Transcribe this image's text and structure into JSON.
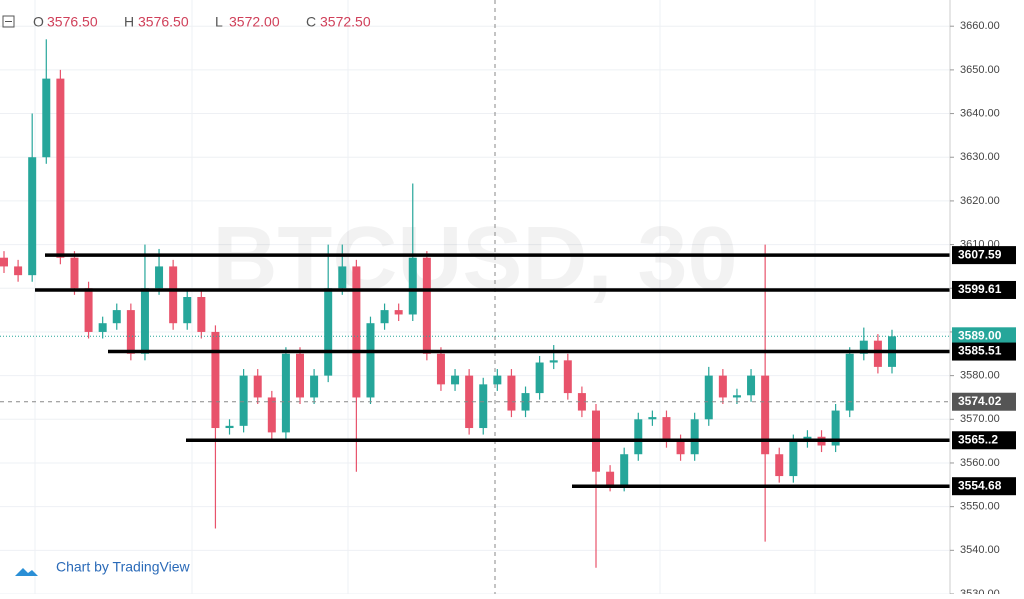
{
  "chart_data": {
    "type": "candlestick",
    "watermark": "BTCUSD, 30",
    "attribution": "Chart by TradingView",
    "ohlc_header": [
      {
        "name": "O",
        "value": 3576.5,
        "label": "3576.50"
      },
      {
        "name": "H",
        "value": 3576.5,
        "label": "3576.50"
      },
      {
        "name": "L",
        "value": 3572,
        "label": "3572.00"
      },
      {
        "name": "C",
        "value": 3572.5,
        "label": "3572.50"
      }
    ],
    "up_color": "#26a69a",
    "down_color": "#e8536b",
    "ylim": [
      3530,
      3666
    ],
    "yticks": [
      {
        "value": 3530,
        "label": "3530.00"
      },
      {
        "value": 3540,
        "label": "3540.00"
      },
      {
        "value": 3550,
        "label": "3550.00"
      },
      {
        "value": 3560,
        "label": "3560.00"
      },
      {
        "value": 3570,
        "label": "3570.00"
      },
      {
        "value": 3580,
        "label": "3580.00"
      },
      {
        "value": 3590,
        "label": "3590.00"
      },
      {
        "value": 3600,
        "label": "3600.00"
      },
      {
        "value": 3610,
        "label": "3610.00"
      },
      {
        "value": 3620,
        "label": "3620.00"
      },
      {
        "value": 3630,
        "label": "3630.00"
      },
      {
        "value": 3640,
        "label": "3640.00"
      },
      {
        "value": 3650,
        "label": "3650.00"
      },
      {
        "value": 3660,
        "label": "3660.00"
      }
    ],
    "grid": true,
    "open": [
      3607,
      3605,
      3603,
      3630,
      3648,
      3607,
      3600,
      3590,
      3592,
      3595,
      3585,
      3600,
      3605,
      3592,
      3598,
      3590,
      3568,
      3568.5,
      3580,
      3575,
      3567,
      3585,
      3575,
      3580,
      3600,
      3605,
      3575,
      3592,
      3595,
      3594,
      3607,
      3585,
      3578,
      3580,
      3568,
      3578,
      3580,
      3572,
      3576,
      3583,
      3583.5,
      3576,
      3572,
      3558,
      3555,
      3562,
      3570,
      3570.5,
      3565,
      3562,
      3570,
      3580,
      3575,
      3575.5,
      3580,
      3562,
      3557,
      3565,
      3566,
      3564,
      3572,
      3585,
      3588,
      3582
    ],
    "high": [
      3608.5,
      3606.5,
      3640,
      3657,
      3650,
      3608.5,
      3601.5,
      3593.5,
      3596.5,
      3596.5,
      3610,
      3609,
      3606.5,
      3599.5,
      3599.5,
      3591.5,
      3570,
      3581.5,
      3581.5,
      3576.5,
      3586.5,
      3586.5,
      3581.5,
      3610,
      3610,
      3606.5,
      3593.5,
      3596.5,
      3596.5,
      3624,
      3608.5,
      3586.5,
      3581.5,
      3581.5,
      3579.5,
      3581.5,
      3581.5,
      3577.5,
      3584.5,
      3587,
      3585,
      3577.5,
      3573.5,
      3559.5,
      3563.5,
      3571.5,
      3572,
      3572,
      3566.5,
      3571.5,
      3582,
      3581.5,
      3577,
      3581.5,
      3610,
      3563.5,
      3566.5,
      3567.5,
      3567.5,
      3573.5,
      3586.5,
      3591,
      3589.5,
      3590.5
    ],
    "low": [
      3603.5,
      3601.5,
      3601.5,
      3628.5,
      3605.5,
      3598.5,
      3588.5,
      3588.5,
      3590.5,
      3583.5,
      3583.5,
      3598.5,
      3590.5,
      3590.5,
      3588.5,
      3545,
      3566.5,
      3567,
      3573.5,
      3565.5,
      3565.5,
      3573.5,
      3573.5,
      3578.5,
      3598.5,
      3558,
      3573.5,
      3590.5,
      3592.5,
      3592.5,
      3583.5,
      3576.5,
      3576.5,
      3566.5,
      3566.5,
      3576.5,
      3570.5,
      3570.5,
      3574.5,
      3581.5,
      3574.5,
      3570.5,
      3536,
      3553.5,
      3553.5,
      3560.5,
      3568.5,
      3563.5,
      3560.5,
      3560.5,
      3568.5,
      3573.5,
      3573.5,
      3574,
      3542,
      3555.5,
      3555.5,
      3563.5,
      3562.5,
      3562.5,
      3570.5,
      3583.5,
      3580.5,
      3580.5
    ],
    "close": [
      3605,
      3603,
      3630,
      3648,
      3607,
      3600,
      3590,
      3592,
      3595,
      3585,
      3600,
      3605,
      3592,
      3598,
      3590,
      3568,
      3568.5,
      3580,
      3575,
      3567,
      3585,
      3575,
      3580,
      3600,
      3605,
      3575,
      3592,
      3595,
      3594,
      3607,
      3585,
      3578,
      3580,
      3568,
      3578,
      3580,
      3572,
      3576,
      3583,
      3583.5,
      3576,
      3572,
      3558,
      3555,
      3562,
      3570,
      3570.5,
      3565,
      3562,
      3570,
      3580,
      3575,
      3575.5,
      3580,
      3562,
      3557,
      3565,
      3566,
      3564,
      3572,
      3585,
      3588,
      3582,
      3589
    ],
    "levels": [
      3607.59,
      3599.61,
      3585.51,
      {
        "value": 3565.2,
        "label": "3565..2"
      },
      3554.68
    ],
    "current_price": {
      "value": 3589,
      "label": "3589.00"
    },
    "crosshair_price": 3574.02
  }
}
